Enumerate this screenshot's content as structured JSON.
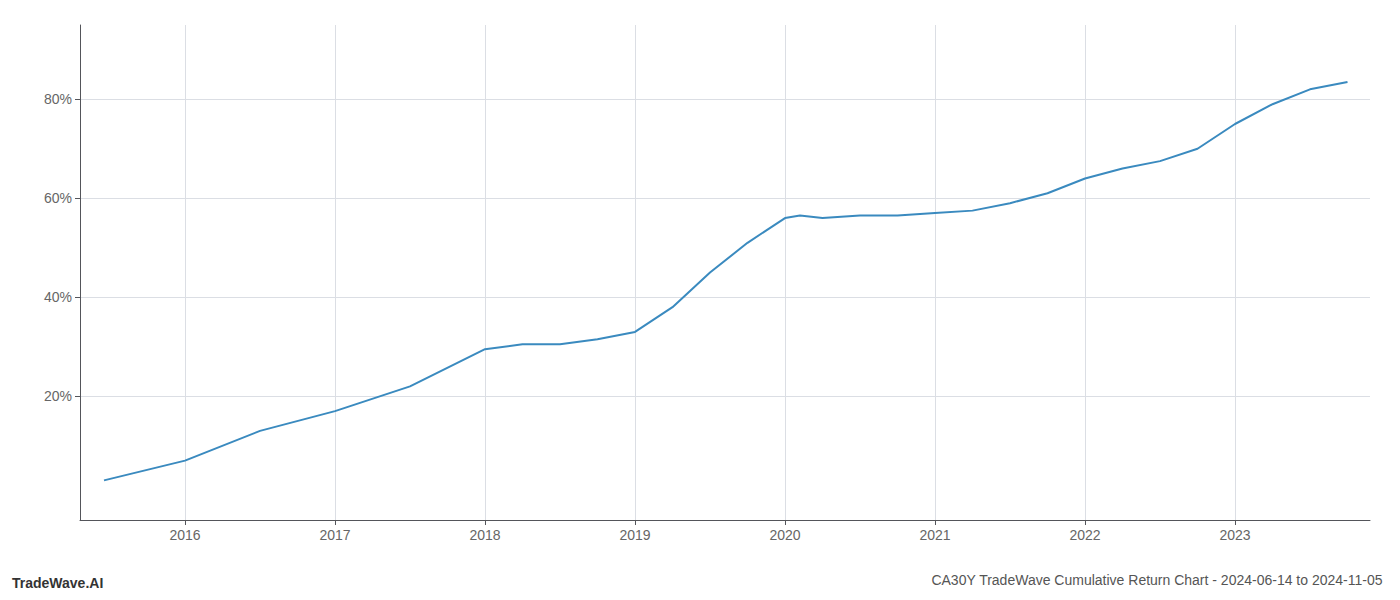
{
  "chart_data": {
    "type": "line",
    "title": "CA30Y TradeWave Cumulative Return Chart - 2024-06-14 to 2024-11-05",
    "annotations": [
      "TradeWave.AI"
    ],
    "x": [
      2015.46,
      2016.0,
      2016.5,
      2017.0,
      2017.5,
      2018.0,
      2018.25,
      2018.5,
      2018.75,
      2019.0,
      2019.25,
      2019.5,
      2019.75,
      2020.0,
      2020.1,
      2020.25,
      2020.5,
      2020.75,
      2021.0,
      2021.25,
      2021.5,
      2021.75,
      2022.0,
      2022.25,
      2022.5,
      2022.75,
      2023.0,
      2023.25,
      2023.5,
      2023.75
    ],
    "values": [
      3.0,
      7.0,
      13.0,
      17.0,
      22.0,
      29.5,
      30.5,
      30.5,
      31.5,
      33.0,
      38.0,
      45.0,
      51.0,
      56.0,
      56.5,
      56.0,
      56.5,
      56.5,
      57.0,
      57.5,
      59.0,
      61.0,
      64.0,
      66.0,
      67.5,
      70.0,
      75.0,
      79.0,
      82.0,
      83.5
    ],
    "color": "#3a8abf",
    "xlim": [
      2015.3,
      2023.9
    ],
    "xticks": [
      2016,
      2017,
      2018,
      2019,
      2020,
      2021,
      2022,
      2023
    ],
    "ylim": [
      -5,
      95
    ],
    "yticks": [
      {
        "value": 20,
        "label": "20%"
      },
      {
        "value": 40,
        "label": "40%"
      },
      {
        "value": 60,
        "label": "60%"
      },
      {
        "value": 80,
        "label": "80%"
      }
    ],
    "grid": true
  }
}
